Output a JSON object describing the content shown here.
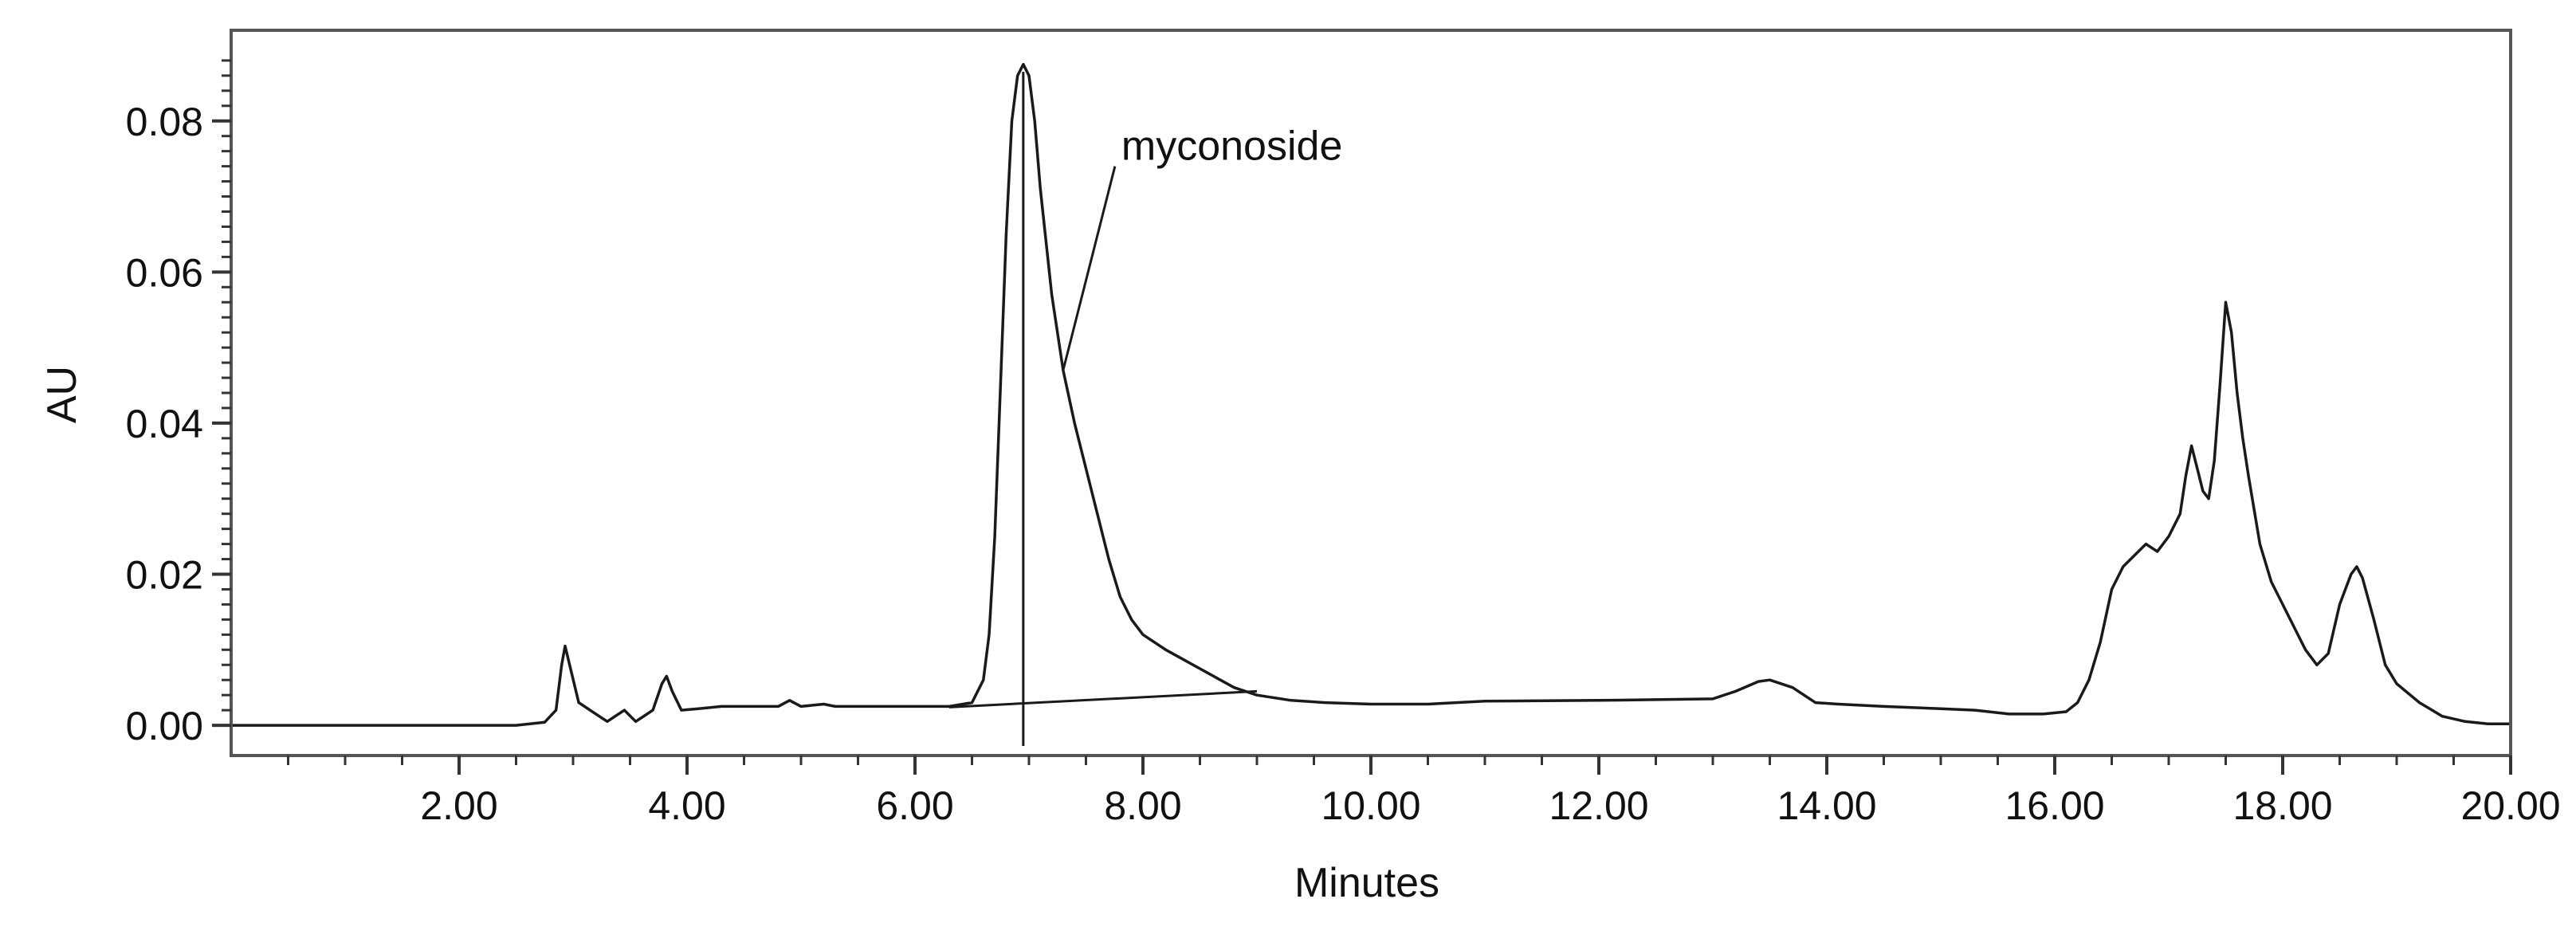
{
  "chart_data": {
    "type": "line",
    "title": "",
    "xlabel": "Minutes",
    "ylabel": "AU",
    "xlim": [
      0,
      20
    ],
    "ylim": [
      -0.004,
      0.092
    ],
    "x_ticks": [
      2,
      4,
      6,
      8,
      10,
      12,
      14,
      16,
      18,
      20
    ],
    "x_tick_labels": [
      "2.00",
      "4.00",
      "6.00",
      "8.00",
      "10.00",
      "12.00",
      "14.00",
      "16.00",
      "18.00",
      "20.00"
    ],
    "x_minor_step": 0.5,
    "y_ticks": [
      0,
      0.02,
      0.04,
      0.06,
      0.08
    ],
    "y_tick_labels": [
      "0.00",
      "0.02",
      "0.04",
      "0.06",
      "0.08"
    ],
    "y_minor_step": 0.002,
    "grid": false,
    "legend": "none",
    "line_color": "#1a1a1a",
    "series": [
      {
        "x": [
          0,
          2.5,
          2.75,
          2.85,
          2.9,
          2.93,
          2.97,
          3.05,
          3.2,
          3.3,
          3.45,
          3.55,
          3.6,
          3.7,
          3.78,
          3.82,
          3.87,
          3.95,
          4.1,
          4.3,
          4.8,
          4.9,
          5.0,
          5.2,
          5.3,
          5.6,
          6.0,
          6.3,
          6.5,
          6.6,
          6.65,
          6.7,
          6.75,
          6.8,
          6.85,
          6.9,
          6.95,
          7.0,
          7.05,
          7.1,
          7.2,
          7.3,
          7.4,
          7.5,
          7.6,
          7.7,
          7.8,
          7.9,
          8.0,
          8.2,
          8.5,
          8.8,
          9.0,
          9.3,
          9.6,
          10.0,
          10.5,
          11.0,
          12.0,
          13.0,
          13.2,
          13.4,
          13.5,
          13.7,
          13.9,
          14.1,
          14.5,
          15.0,
          15.3,
          15.6,
          15.9,
          16.1,
          16.2,
          16.3,
          16.4,
          16.5,
          16.6,
          16.8,
          16.9,
          17.0,
          17.1,
          17.15,
          17.2,
          17.25,
          17.3,
          17.35,
          17.4,
          17.45,
          17.5,
          17.55,
          17.6,
          17.65,
          17.7,
          17.8,
          17.9,
          18.0,
          18.1,
          18.2,
          18.3,
          18.4,
          18.5,
          18.6,
          18.65,
          18.7,
          18.8,
          18.9,
          19.0,
          19.2,
          19.4,
          19.6,
          19.8,
          20.0
        ],
        "y": [
          0.0,
          0.0,
          0.0004,
          0.002,
          0.008,
          0.0105,
          0.008,
          0.003,
          0.0015,
          0.0005,
          0.002,
          0.0005,
          0.001,
          0.002,
          0.0055,
          0.0065,
          0.0045,
          0.002,
          0.0022,
          0.0025,
          0.0025,
          0.0033,
          0.0025,
          0.0028,
          0.0025,
          0.0025,
          0.0025,
          0.0025,
          0.003,
          0.006,
          0.012,
          0.025,
          0.045,
          0.065,
          0.08,
          0.086,
          0.0875,
          0.086,
          0.08,
          0.071,
          0.057,
          0.047,
          0.04,
          0.034,
          0.028,
          0.022,
          0.017,
          0.014,
          0.012,
          0.01,
          0.0075,
          0.005,
          0.004,
          0.0033,
          0.003,
          0.0028,
          0.0028,
          0.0032,
          0.0033,
          0.0035,
          0.0045,
          0.0058,
          0.006,
          0.005,
          0.003,
          0.0028,
          0.0025,
          0.0022,
          0.002,
          0.0015,
          0.0015,
          0.0018,
          0.003,
          0.006,
          0.011,
          0.018,
          0.021,
          0.024,
          0.023,
          0.025,
          0.028,
          0.033,
          0.037,
          0.034,
          0.031,
          0.03,
          0.035,
          0.045,
          0.056,
          0.052,
          0.044,
          0.038,
          0.033,
          0.024,
          0.019,
          0.016,
          0.013,
          0.01,
          0.008,
          0.0095,
          0.016,
          0.02,
          0.021,
          0.0195,
          0.014,
          0.008,
          0.0055,
          0.003,
          0.0012,
          0.0005,
          0.0002,
          0.0002
        ]
      }
    ],
    "baseline_line": {
      "x": [
        6.3,
        9.0
      ],
      "y": [
        0.0024,
        0.0045
      ]
    },
    "peak_marker": {
      "x": 6.95
    },
    "annotations": [
      {
        "text": "myconoside",
        "x": 7.3,
        "y": 0.047
      }
    ]
  }
}
